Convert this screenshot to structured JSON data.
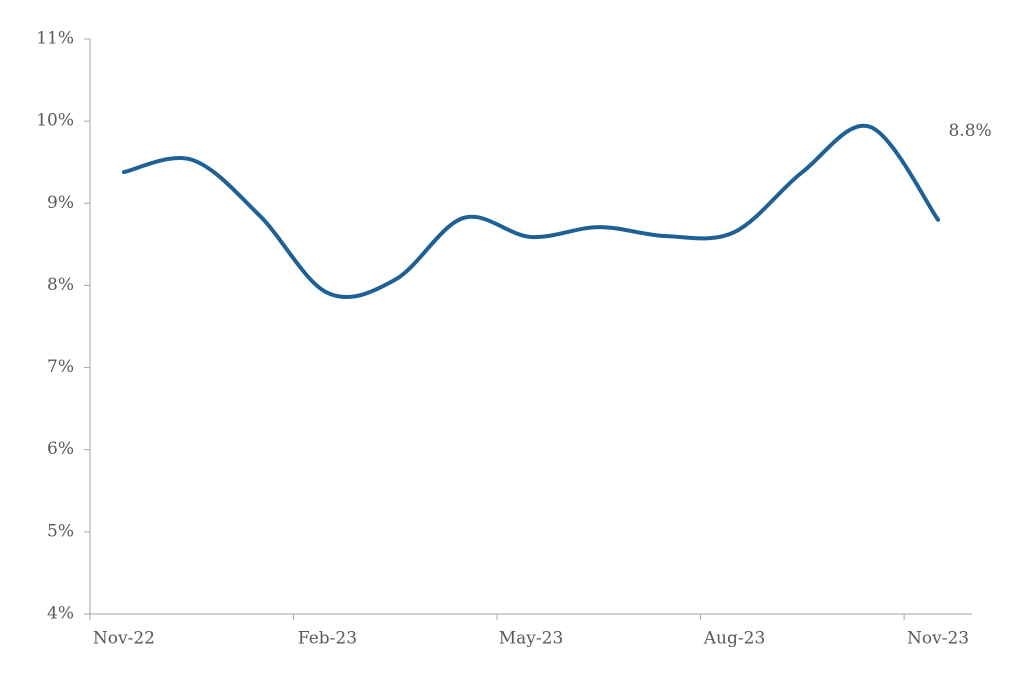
{
  "chart_data": {
    "type": "line",
    "categories": [
      "Nov-22",
      null,
      null,
      "Feb-23",
      null,
      null,
      "May-23",
      null,
      null,
      "Aug-23",
      null,
      null,
      "Nov-23"
    ],
    "series": [
      {
        "color": "#1f6095",
        "values": [
          9.38,
          9.53,
          8.85,
          7.91,
          8.07,
          8.82,
          8.59,
          8.71,
          8.6,
          8.65,
          9.38,
          9.93,
          8.8
        ],
        "value_labels": [
          null,
          null,
          null,
          null,
          null,
          null,
          null,
          null,
          null,
          null,
          null,
          null,
          "8.8%"
        ]
      }
    ],
    "ylim": [
      4,
      11
    ],
    "yticks": [
      {
        "value": 4,
        "label": "4%"
      },
      {
        "value": 5,
        "label": "5%"
      },
      {
        "value": 6,
        "label": "6%"
      },
      {
        "value": 7,
        "label": "7%"
      },
      {
        "value": 8,
        "label": "8%"
      },
      {
        "value": 9,
        "label": "9%"
      },
      {
        "value": 10,
        "label": "10%"
      },
      {
        "value": 11,
        "label": "11%"
      }
    ],
    "grid": false
  }
}
